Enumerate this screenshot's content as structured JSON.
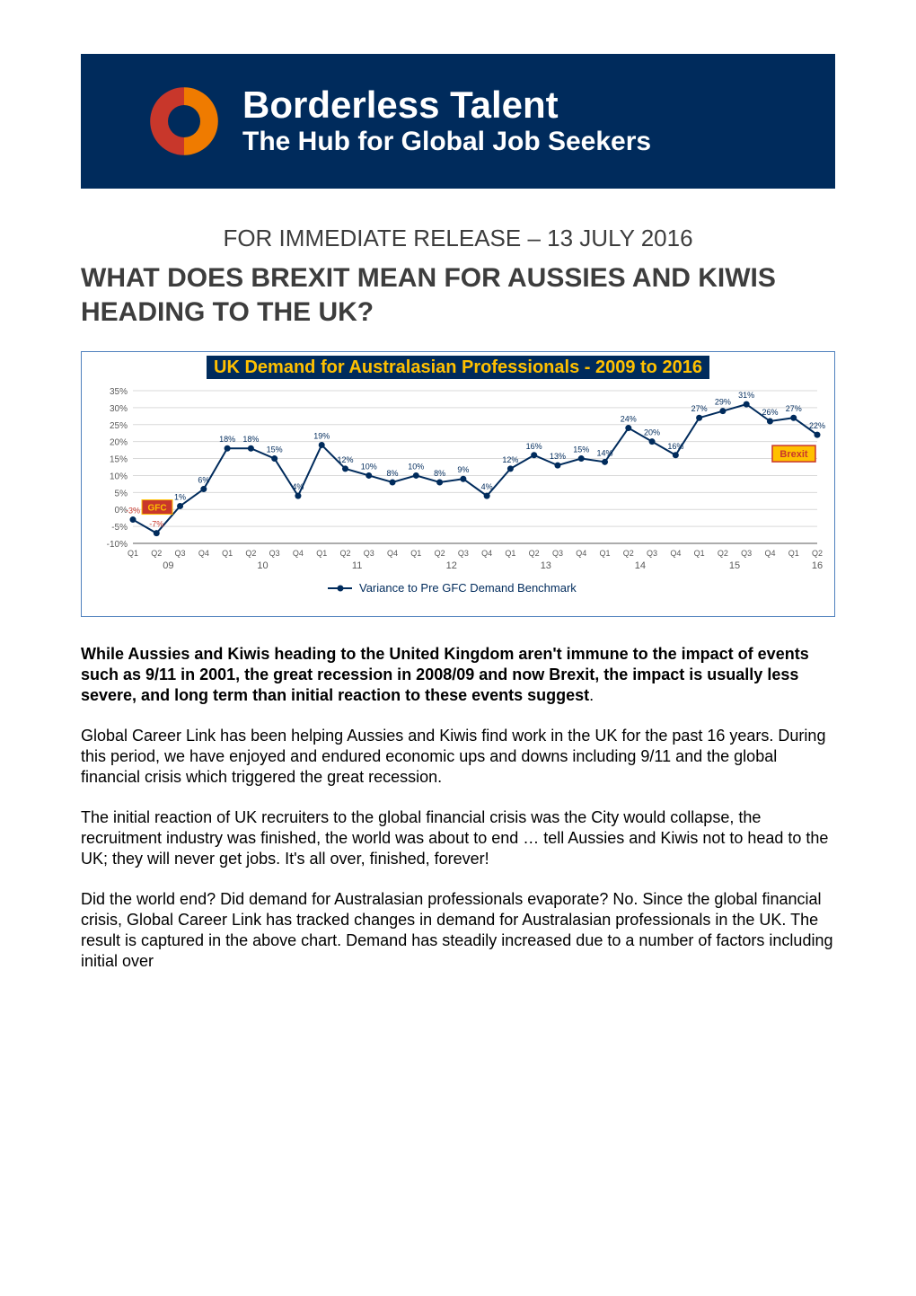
{
  "banner": {
    "title": "Borderless Talent",
    "subtitle": "The Hub for Global Job Seekers",
    "bg_color": "#002b5c",
    "text_color": "#ffffff",
    "logo_colors": {
      "red": "#c8372b",
      "orange": "#ef7b00"
    }
  },
  "release_line": "FOR IMMEDIATE RELEASE – 13 JULY 2016",
  "headline": "WHAT DOES BREXIT MEAN FOR AUSSIES AND KIWIS HEADING TO THE UK?",
  "chart": {
    "type": "line",
    "title": "UK Demand for Australasian Professionals - 2009 to 2016",
    "title_color": "#ffc000",
    "title_bg": "#002b5c",
    "border_color": "#4f81bd",
    "background_color": "#ffffff",
    "grid_color": "#d9d9d9",
    "line_color": "#002b5c",
    "line_width": 2,
    "marker": "circle",
    "marker_size": 5,
    "marker_fill": "#002b5c",
    "ylim": [
      -10,
      35
    ],
    "ytick_step": 5,
    "yticks": [
      "-10%",
      "-5%",
      "0%",
      "5%",
      "10%",
      "15%",
      "20%",
      "25%",
      "30%",
      "35%"
    ],
    "ylabel_fontsize": 10,
    "ylabel_color": "#595959",
    "x_quarters": [
      "Q1",
      "Q2",
      "Q3",
      "Q4",
      "Q1",
      "Q2",
      "Q3",
      "Q4",
      "Q1",
      "Q2",
      "Q3",
      "Q4",
      "Q1",
      "Q2",
      "Q3",
      "Q4",
      "Q1",
      "Q2",
      "Q3",
      "Q4",
      "Q1",
      "Q2",
      "Q3",
      "Q4",
      "Q1",
      "Q2",
      "Q3",
      "Q4",
      "Q1",
      "Q2"
    ],
    "x_years": [
      "09",
      "10",
      "11",
      "12",
      "13",
      "14",
      "15",
      "16"
    ],
    "xlabel_fontsize": 9,
    "xlabel_color": "#595959",
    "values": [
      -3,
      -7,
      1,
      6,
      18,
      18,
      15,
      4,
      19,
      12,
      10,
      8,
      10,
      8,
      9,
      4,
      12,
      16,
      13,
      15,
      14,
      24,
      20,
      16,
      27,
      29,
      31,
      26,
      27,
      22
    ],
    "value_labels": [
      "-3%",
      "-7%",
      "1%",
      "6%",
      "18%",
      "18%",
      "15%",
      "4%",
      "19%",
      "12%",
      "10%",
      "8%",
      "10%",
      "8%",
      "9%",
      "4%",
      "12%",
      "16%",
      "13%",
      "15%",
      "14%",
      "24%",
      "20%",
      "16%",
      "27%",
      "29%",
      "31%",
      "26%",
      "27%",
      "22%"
    ],
    "label_fontsize": 9,
    "label_color_positive": "#002b5c",
    "label_color_negative": "#c8372b",
    "legend": "Variance to Pre GFC Demand Benchmark",
    "annotations": {
      "gfc": {
        "text": "GFC",
        "bg": "#c8372b",
        "text_color": "#ffc000",
        "border": "#ffc000",
        "at_index": 0
      },
      "brexit": {
        "text": "Brexit",
        "bg": "#ffc000",
        "text_color": "#c8372b",
        "border": "#c8372b",
        "at_index": 29
      }
    }
  },
  "paragraphs": {
    "p1_bold": "While Aussies and Kiwis heading to the United Kingdom aren't immune to the impact of events such as 9/11 in 2001, the great recession in 2008/09 and now Brexit, the impact is usually less severe, and long term than initial reaction to these events suggest",
    "p1_tail": ".",
    "p2": "Global Career Link has been helping Aussies and Kiwis find work in the UK for the past 16 years.  During this period, we have enjoyed and endured economic ups and downs including 9/11 and the global financial crisis which triggered the great recession.",
    "p3": "The initial reaction of UK recruiters to the global financial crisis was the City would collapse, the recruitment industry was finished, the world was about to end … tell Aussies and Kiwis not to head to the UK; they will never get jobs. It's all over, finished, forever!",
    "p4": "Did the world end? Did demand for Australasian professionals evaporate? No. Since the global financial crisis, Global Career Link has tracked changes in demand for Australasian professionals in the UK. The result is captured in the above chart.  Demand has steadily increased due to a number of factors including initial over"
  }
}
